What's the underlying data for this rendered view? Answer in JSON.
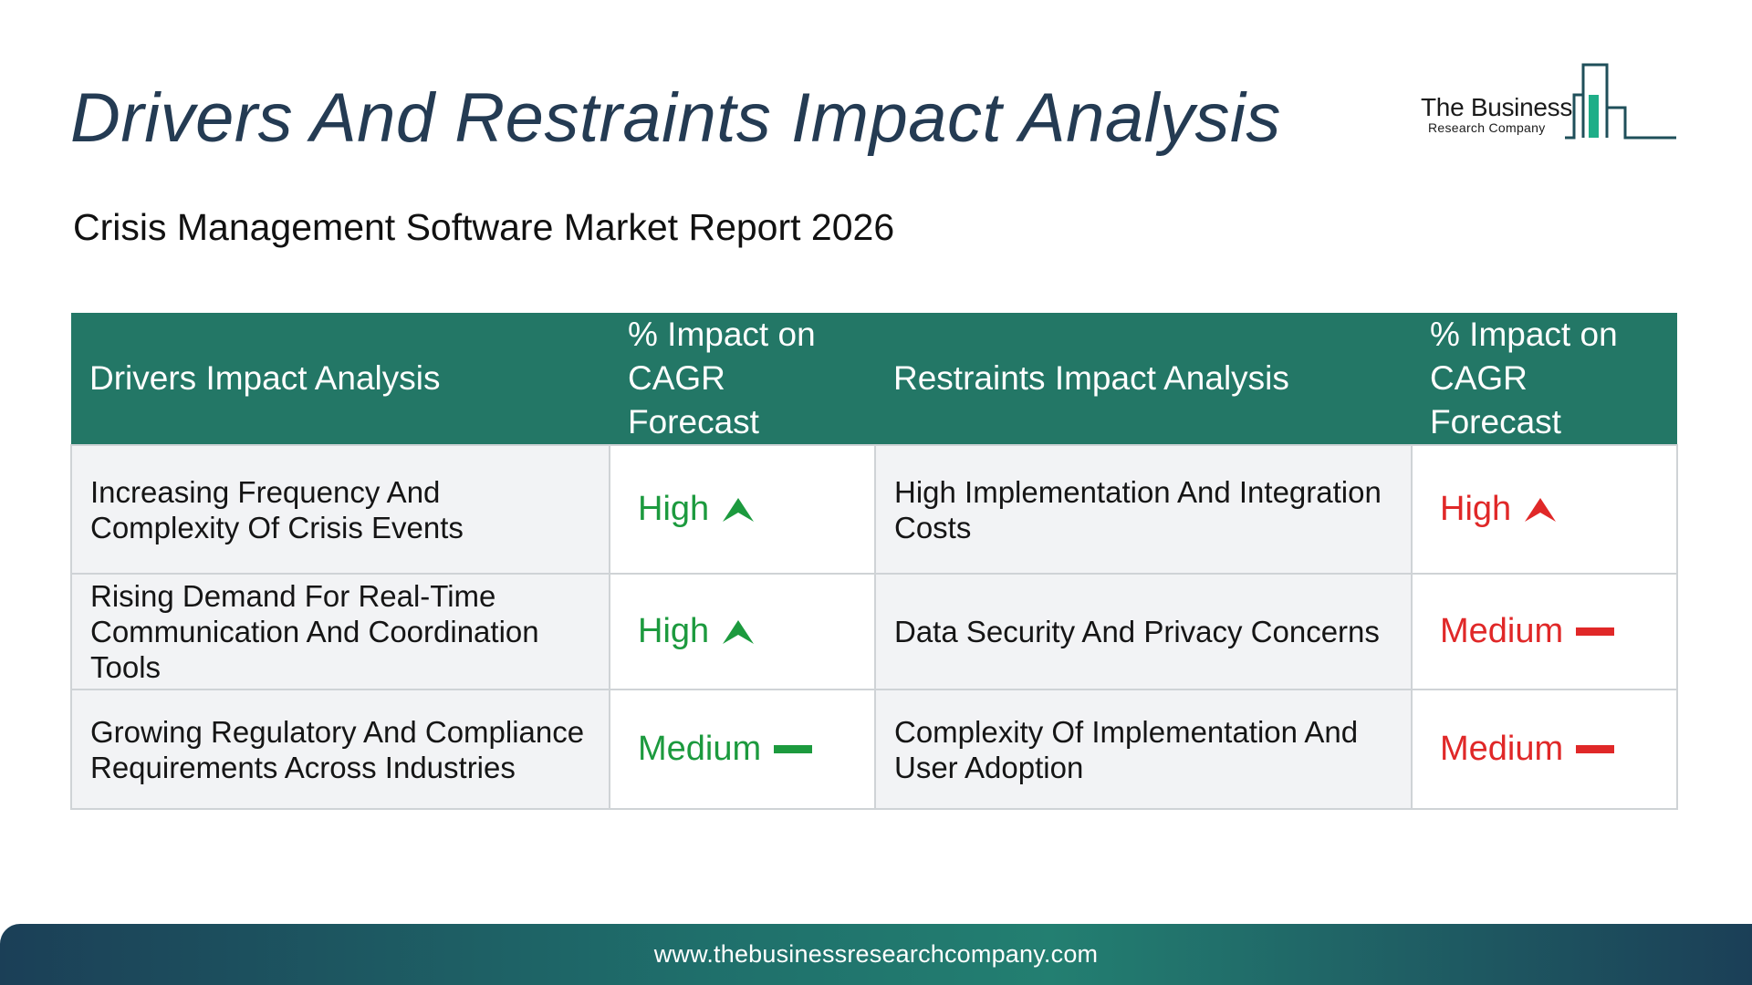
{
  "header": {
    "title": "Drivers And Restraints Impact Analysis",
    "subtitle": "Crisis Management Software Market Report 2026"
  },
  "logo": {
    "name": "The Business",
    "tagline": "Research Company",
    "icon": "bar-chart-building-logo"
  },
  "table": {
    "columns": [
      "Drivers Impact Analysis",
      "% Impact on CAGR Forecast",
      "Restraints Impact Analysis",
      "% Impact on CAGR Forecast"
    ],
    "rows": [
      {
        "driver": "Increasing Frequency And Complexity Of Crisis Events",
        "driver_impact": "High",
        "driver_icon": "arrow-up-icon",
        "restraint": "High Implementation And Integration Costs",
        "restraint_impact": "High",
        "restraint_icon": "arrow-up-icon"
      },
      {
        "driver": "Rising Demand For Real-Time Communication And Coordination Tools",
        "driver_impact": "High",
        "driver_icon": "arrow-up-icon",
        "restraint": "Data Security And Privacy Concerns",
        "restraint_impact": "Medium",
        "restraint_icon": "dash-icon"
      },
      {
        "driver": "Growing Regulatory And Compliance Requirements Across Industries",
        "driver_impact": "Medium",
        "driver_icon": "dash-icon",
        "restraint": "Complexity Of Implementation And User Adoption",
        "restraint_impact": "Medium",
        "restraint_icon": "dash-icon"
      }
    ]
  },
  "colors": {
    "header_bg": "#237766",
    "driver_green": "#1c9a3e",
    "restraint_red": "#e02828",
    "title": "#243b53"
  },
  "footer": {
    "url": "www.thebusinessresearchcompany.com"
  }
}
